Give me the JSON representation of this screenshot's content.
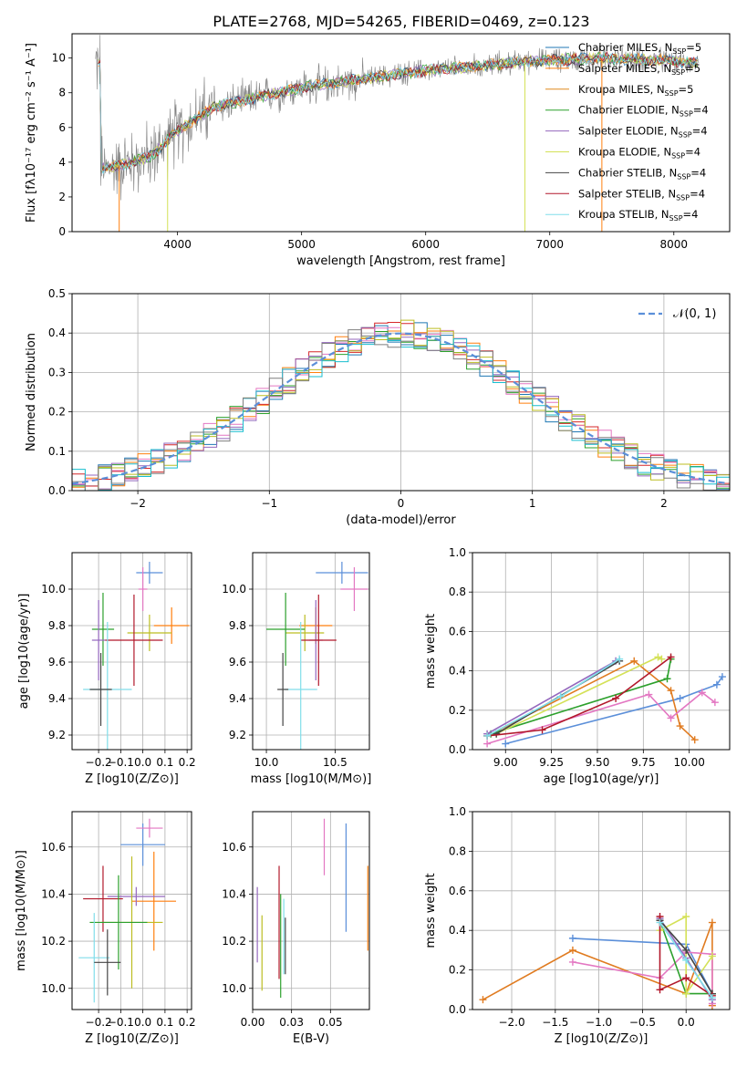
{
  "figure": {
    "title": "PLATE=2768, MJD=54265, FIBERID=0469, z=0.123"
  },
  "chart_data": [
    {
      "id": "spectrum",
      "type": "line",
      "title": "PLATE=2768, MJD=54265, FIBERID=0469, z=0.123",
      "xlabel": "wavelength [Angstrom, rest frame]",
      "ylabel": "Flux [fλ10⁻¹⁷ erg cm⁻² s⁻¹ A⁻¹]",
      "xlim": [
        3150,
        8450
      ],
      "ylim": [
        0,
        11.4
      ],
      "xticks": [
        4000,
        5000,
        6000,
        7000,
        8000
      ],
      "yticks": [
        0,
        2,
        4,
        6,
        8,
        10
      ],
      "grid": false,
      "legend_placement": "top-right",
      "observed_color": "#808080",
      "observed_range": [
        3340,
        8200
      ],
      "continuum_anchors": [
        [
          3380,
          3.6
        ],
        [
          3600,
          3.9
        ],
        [
          3800,
          4.4
        ],
        [
          3950,
          5.5
        ],
        [
          4100,
          6.3
        ],
        [
          4300,
          7.2
        ],
        [
          4500,
          7.5
        ],
        [
          4800,
          8.0
        ],
        [
          5000,
          8.3
        ],
        [
          5300,
          8.6
        ],
        [
          5600,
          8.9
        ],
        [
          5900,
          9.2
        ],
        [
          6200,
          9.4
        ],
        [
          6500,
          9.6
        ],
        [
          6800,
          9.8
        ],
        [
          7100,
          9.9
        ],
        [
          7400,
          10.0
        ],
        [
          7800,
          9.9
        ],
        [
          8200,
          9.7
        ]
      ],
      "model_series": [
        {
          "name": "Chabrier MILES, N_SSP=5",
          "label_main": "Chabrier MILES, N",
          "label_sub": "SSP",
          "label_tail": "=5",
          "color": "#1f77b4"
        },
        {
          "name": "Salpeter MILES, N_SSP=5",
          "label_main": "Salpeter MILES, N",
          "label_sub": "SSP",
          "label_tail": "=5",
          "color": "#ff7f0e"
        },
        {
          "name": "Kroupa MILES, N_SSP=5",
          "label_main": "Kroupa MILES, N",
          "label_sub": "SSP",
          "label_tail": "=5",
          "color": "#e08a1e"
        },
        {
          "name": "Chabrier ELODIE, N_SSP=4",
          "label_main": "Chabrier ELODIE, N",
          "label_sub": "SSP",
          "label_tail": "=4",
          "color": "#2ca02c"
        },
        {
          "name": "Salpeter ELODIE, N_SSP=4",
          "label_main": "Salpeter ELODIE, N",
          "label_sub": "SSP",
          "label_tail": "=4",
          "color": "#9467bd"
        },
        {
          "name": "Kroupa ELODIE, N_SSP=4",
          "label_main": "Kroupa ELODIE, N",
          "label_sub": "SSP",
          "label_tail": "=4",
          "color": "#d4e157"
        },
        {
          "name": "Chabrier STELIB, N_SSP=4",
          "label_main": "Chabrier STELIB, N",
          "label_sub": "SSP",
          "label_tail": "=4",
          "color": "#444444"
        },
        {
          "name": "Salpeter STELIB, N_SSP=4",
          "label_main": "Salpeter STELIB, N",
          "label_sub": "SSP",
          "label_tail": "=4",
          "color": "#b2182b"
        },
        {
          "name": "Kroupa STELIB, N_SSP=4",
          "label_main": "Kroupa STELIB, N",
          "label_sub": "SSP",
          "label_tail": "=4",
          "color": "#80deea"
        }
      ]
    },
    {
      "id": "residuals",
      "type": "bar",
      "xlabel": "(data-model)/error",
      "ylabel": "Normed distribution",
      "xlim": [
        -2.5,
        2.5
      ],
      "ylim": [
        0,
        0.5
      ],
      "xticks": [
        -2,
        -1,
        0,
        1,
        2
      ],
      "yticks": [
        0.0,
        0.1,
        0.2,
        0.3,
        0.4,
        0.5
      ],
      "grid": true,
      "bin_width": 0.1,
      "legend_placement": "top-right",
      "gaussian": {
        "name": "𝒩(0, 1)",
        "color": "#5b8fd9",
        "mean": 0,
        "sigma": 1
      },
      "series_colors": [
        "#1f77b4",
        "#ff7f0e",
        "#2ca02c",
        "#d62728",
        "#9467bd",
        "#e377c2",
        "#bcbd22",
        "#17becf",
        "#7f7f7f"
      ]
    },
    {
      "id": "age-vs-Z",
      "type": "scatter",
      "xlabel": "Z [log10(Z/Z⊙)]",
      "ylabel": "age  [log10(age/yr)]",
      "xlim": [
        -0.32,
        0.22
      ],
      "ylim": [
        9.12,
        10.2
      ],
      "xticks": [
        -0.2,
        -0.1,
        0.0,
        0.1,
        0.2
      ],
      "yticks": [
        9.2,
        9.4,
        9.6,
        9.8,
        10.0
      ],
      "grid": true,
      "points": [
        {
          "x": 0.03,
          "xerr": 0.06,
          "y": 10.09,
          "yerr": 0.06,
          "color": "#5b8fd9"
        },
        {
          "x": 0.0,
          "xerr": 0.02,
          "y": 10.0,
          "yerr": 0.12,
          "color": "#e377c2"
        },
        {
          "x": 0.13,
          "xerr": 0.08,
          "y": 9.8,
          "yerr": 0.1,
          "color": "#ff7f0e"
        },
        {
          "x": 0.03,
          "xerr": 0.1,
          "y": 9.76,
          "yerr": 0.1,
          "color": "#bcbd22"
        },
        {
          "x": -0.18,
          "xerr": 0.05,
          "y": 9.78,
          "yerr": 0.2,
          "color": "#2ca02c"
        },
        {
          "x": -0.2,
          "xerr": 0.03,
          "y": 9.72,
          "yerr": 0.22,
          "color": "#9467bd"
        },
        {
          "x": -0.04,
          "xerr": 0.13,
          "y": 9.72,
          "yerr": 0.25,
          "color": "#b2182b"
        },
        {
          "x": -0.16,
          "xerr": 0.11,
          "y": 9.45,
          "yerr": 0.37,
          "color": "#80deea"
        },
        {
          "x": -0.19,
          "xerr": 0.05,
          "y": 9.45,
          "yerr": 0.2,
          "color": "#444444"
        }
      ]
    },
    {
      "id": "age-vs-mass",
      "type": "scatter",
      "xlabel": "mass [log10(M/M⊙)]",
      "ylabel": "",
      "xlim": [
        9.9,
        10.75
      ],
      "ylim": [
        9.12,
        10.2
      ],
      "xticks": [
        10.0,
        10.5
      ],
      "yticks": [
        9.2,
        9.4,
        9.6,
        9.8,
        10.0
      ],
      "grid": true,
      "points": [
        {
          "x": 10.55,
          "xerr": 0.19,
          "y": 10.09,
          "yerr": 0.06,
          "color": "#5b8fd9"
        },
        {
          "x": 10.64,
          "xerr": 0.1,
          "y": 10.0,
          "yerr": 0.12,
          "color": "#e377c2"
        },
        {
          "x": 10.36,
          "xerr": 0.12,
          "y": 9.8,
          "yerr": 0.1,
          "color": "#ff7f0e"
        },
        {
          "x": 10.28,
          "xerr": 0.14,
          "y": 9.76,
          "yerr": 0.1,
          "color": "#bcbd22"
        },
        {
          "x": 10.14,
          "xerr": 0.14,
          "y": 9.78,
          "yerr": 0.2,
          "color": "#2ca02c"
        },
        {
          "x": 10.36,
          "xerr": 0.05,
          "y": 9.72,
          "yerr": 0.22,
          "color": "#9467bd"
        },
        {
          "x": 10.38,
          "xerr": 0.13,
          "y": 9.72,
          "yerr": 0.25,
          "color": "#b2182b"
        },
        {
          "x": 10.25,
          "xerr": 0.12,
          "y": 9.45,
          "yerr": 0.37,
          "color": "#80deea"
        },
        {
          "x": 10.12,
          "xerr": 0.04,
          "y": 9.45,
          "yerr": 0.2,
          "color": "#444444"
        }
      ]
    },
    {
      "id": "massweight-vs-age",
      "type": "line",
      "xlabel": "age  [log10(age/yr)]",
      "ylabel": "mass weight",
      "xlim": [
        8.82,
        10.22
      ],
      "ylim": [
        0,
        1.0
      ],
      "xticks": [
        9.0,
        9.25,
        9.5,
        9.75,
        10.0
      ],
      "yticks": [
        0.0,
        0.2,
        0.4,
        0.6,
        0.8,
        1.0
      ],
      "grid": true,
      "series": [
        {
          "color": "#5b8fd9",
          "x": [
            9.0,
            9.95,
            10.15,
            10.18
          ],
          "y": [
            0.03,
            0.26,
            0.33,
            0.37
          ]
        },
        {
          "color": "#e07b20",
          "x": [
            8.9,
            9.7,
            9.9,
            9.95,
            10.03
          ],
          "y": [
            0.07,
            0.45,
            0.3,
            0.12,
            0.05
          ]
        },
        {
          "color": "#e377c2",
          "x": [
            8.9,
            9.78,
            9.9,
            10.07,
            10.14
          ],
          "y": [
            0.03,
            0.28,
            0.16,
            0.29,
            0.24
          ]
        },
        {
          "color": "#2ca02c",
          "x": [
            8.92,
            9.88,
            9.9
          ],
          "y": [
            0.08,
            0.36,
            0.46
          ]
        },
        {
          "color": "#9467bd",
          "x": [
            8.9,
            9.6
          ],
          "y": [
            0.08,
            0.45
          ]
        },
        {
          "color": "#d4e157",
          "x": [
            8.95,
            9.83,
            9.85
          ],
          "y": [
            0.08,
            0.47,
            0.46
          ]
        },
        {
          "color": "#444444",
          "x": [
            8.95,
            9.62
          ],
          "y": [
            0.08,
            0.45
          ]
        },
        {
          "color": "#b2182b",
          "x": [
            8.9,
            9.2,
            9.6,
            9.9
          ],
          "y": [
            0.07,
            0.1,
            0.26,
            0.47
          ]
        },
        {
          "color": "#80deea",
          "x": [
            8.9,
            9.3,
            9.62
          ],
          "y": [
            0.07,
            0.27,
            0.46
          ]
        }
      ]
    },
    {
      "id": "mass-vs-Z",
      "type": "scatter",
      "xlabel": "Z [log10(Z/Z⊙)]",
      "ylabel": "mass [log10(M/M⊙)]",
      "xlim": [
        -0.32,
        0.22
      ],
      "ylim": [
        9.91,
        10.75
      ],
      "xticks": [
        -0.2,
        -0.1,
        0.0,
        0.1,
        0.2
      ],
      "yticks": [
        10.0,
        10.2,
        10.4,
        10.6
      ],
      "grid": true,
      "points": [
        {
          "x": 0.0,
          "xerr": 0.1,
          "y": 10.61,
          "yerr": 0.09,
          "color": "#5b8fd9"
        },
        {
          "x": 0.03,
          "xerr": 0.06,
          "y": 10.68,
          "yerr": 0.04,
          "color": "#e377c2"
        },
        {
          "x": 0.05,
          "xerr": 0.1,
          "y": 10.37,
          "yerr": 0.21,
          "color": "#ff7f0e"
        },
        {
          "x": -0.03,
          "xerr": 0.13,
          "y": 10.39,
          "yerr": 0.04,
          "color": "#9467bd"
        },
        {
          "x": -0.18,
          "xerr": 0.09,
          "y": 10.38,
          "yerr": 0.14,
          "color": "#b2182b"
        },
        {
          "x": -0.05,
          "xerr": 0.14,
          "y": 10.28,
          "yerr": 0.28,
          "color": "#bcbd22"
        },
        {
          "x": -0.11,
          "xerr": 0.13,
          "y": 10.28,
          "yerr": 0.2,
          "color": "#2ca02c"
        },
        {
          "x": -0.22,
          "xerr": 0.07,
          "y": 10.13,
          "yerr": 0.19,
          "color": "#80deea"
        },
        {
          "x": -0.16,
          "xerr": 0.06,
          "y": 10.11,
          "yerr": 0.14,
          "color": "#444444"
        }
      ]
    },
    {
      "id": "mass-vs-EBV",
      "type": "scatter",
      "xlabel": "E(B-V)",
      "ylabel": "",
      "xlim": [
        0.0,
        0.075
      ],
      "ylim": [
        9.91,
        10.75
      ],
      "xticks": [
        0.0,
        0.025,
        0.05
      ],
      "yticks": [
        10.0,
        10.2,
        10.4,
        10.6
      ],
      "grid": true,
      "points": [
        {
          "x": 0.046,
          "y": 10.6,
          "yerr": 0.12,
          "color": "#e377c2"
        },
        {
          "x": 0.06,
          "y": 10.47,
          "yerr": 0.23,
          "color": "#5b8fd9"
        },
        {
          "x": 0.074,
          "y": 10.34,
          "yerr": 0.18,
          "color": "#ff7f0e"
        },
        {
          "x": 0.003,
          "y": 10.27,
          "yerr": 0.16,
          "color": "#9467bd"
        },
        {
          "x": 0.006,
          "y": 10.15,
          "yerr": 0.16,
          "color": "#bcbd22"
        },
        {
          "x": 0.017,
          "y": 10.28,
          "yerr": 0.24,
          "color": "#b2182b"
        },
        {
          "x": 0.018,
          "y": 10.18,
          "yerr": 0.22,
          "color": "#2ca02c"
        },
        {
          "x": 0.02,
          "y": 10.22,
          "yerr": 0.16,
          "color": "#80deea"
        },
        {
          "x": 0.021,
          "y": 10.18,
          "yerr": 0.12,
          "color": "#444444"
        }
      ]
    },
    {
      "id": "massweight-vs-Z",
      "type": "line",
      "xlabel": "Z [log10(Z/Z⊙)]",
      "ylabel": "mass weight",
      "xlim": [
        -2.45,
        0.5
      ],
      "ylim": [
        0,
        1.0
      ],
      "xticks": [
        -2.0,
        -1.5,
        -1.0,
        -0.5,
        0.0
      ],
      "yticks": [
        0.0,
        0.2,
        0.4,
        0.6,
        0.8,
        1.0
      ],
      "grid": true,
      "series": [
        {
          "color": "#5b8fd9",
          "x": [
            -1.3,
            0.0,
            0.3
          ],
          "y": [
            0.36,
            0.33,
            0.08
          ]
        },
        {
          "color": "#e07b20",
          "x": [
            -2.33,
            -1.3,
            0.0,
            0.3,
            0.3
          ],
          "y": [
            0.05,
            0.3,
            0.08,
            0.44,
            0.02
          ]
        },
        {
          "color": "#e377c2",
          "x": [
            -1.3,
            -0.3,
            0.0,
            0.3,
            0.3
          ],
          "y": [
            0.24,
            0.16,
            0.29,
            0.28,
            0.03
          ]
        },
        {
          "color": "#2ca02c",
          "x": [
            -0.3,
            0.0,
            0.3
          ],
          "y": [
            0.45,
            0.08,
            0.08
          ]
        },
        {
          "color": "#9467bd",
          "x": [
            -0.3,
            0.0,
            0.3
          ],
          "y": [
            0.46,
            0.26,
            0.05
          ]
        },
        {
          "color": "#d4e157",
          "x": [
            -0.3,
            0.0,
            0.0,
            0.3
          ],
          "y": [
            0.4,
            0.47,
            0.08,
            0.27
          ]
        },
        {
          "color": "#444444",
          "x": [
            -0.3,
            0.0,
            0.3
          ],
          "y": [
            0.45,
            0.3,
            0.08
          ]
        },
        {
          "color": "#b2182b",
          "x": [
            -0.3,
            -0.3,
            0.0,
            0.3
          ],
          "y": [
            0.47,
            0.1,
            0.16,
            0.07
          ]
        },
        {
          "color": "#80deea",
          "x": [
            -0.3,
            0.0,
            0.3
          ],
          "y": [
            0.44,
            0.25,
            0.06
          ]
        }
      ]
    }
  ]
}
